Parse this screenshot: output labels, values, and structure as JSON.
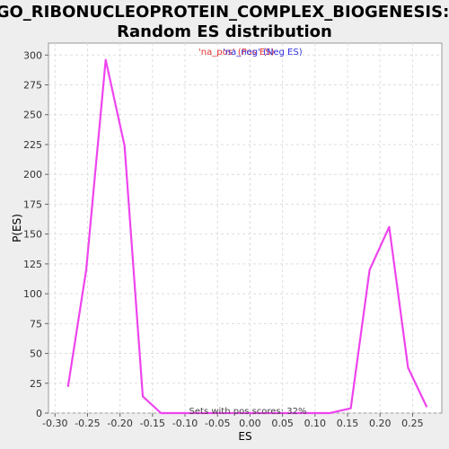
{
  "chart_data": {
    "type": "line",
    "title_lines": [
      "GO_RIBONUCLEOPROTEIN_COMPLEX_BIOGENESIS:",
      "Random ES distribution"
    ],
    "xlabel": "ES",
    "ylabel": "P(ES)",
    "xlim": [
      -0.31,
      0.295
    ],
    "ylim": [
      0,
      310
    ],
    "x_ticks": [
      -0.3,
      -0.25,
      -0.2,
      -0.15,
      -0.1,
      -0.05,
      0.0,
      0.05,
      0.1,
      0.15,
      0.2,
      0.25
    ],
    "x_tick_labels": [
      "-0.30",
      "-0.25",
      "-0.20",
      "-0.15",
      "-0.10",
      "-0.05",
      "0.00",
      "0.05",
      "0.10",
      "0.15",
      "0.20",
      "0.25"
    ],
    "y_ticks": [
      0,
      25,
      50,
      75,
      100,
      125,
      150,
      175,
      200,
      225,
      250,
      275,
      300
    ],
    "y_tick_labels": [
      "0",
      "25",
      "50",
      "75",
      "100",
      "125",
      "150",
      "175",
      "200",
      "225",
      "250",
      "275",
      "300"
    ],
    "grid": true,
    "legend": {
      "position": "top-center",
      "entries": [
        {
          "text": "'na_pos' (Pos ES)",
          "color": "#e03030"
        },
        {
          "text": "'na_neg' (Neg ES)",
          "color": "#3030e0"
        }
      ]
    },
    "annotation": "Sets with pos scores: 32%",
    "series": [
      {
        "color": "#ee44ee",
        "x": [
          -0.28,
          -0.252,
          -0.222,
          -0.193,
          -0.165,
          -0.137,
          -0.108,
          0.123,
          0.155,
          0.184,
          0.214,
          0.243,
          0.272
        ],
        "y": [
          22,
          120,
          296,
          224,
          14,
          0,
          0,
          0,
          4,
          120,
          156,
          38,
          5
        ]
      }
    ]
  }
}
